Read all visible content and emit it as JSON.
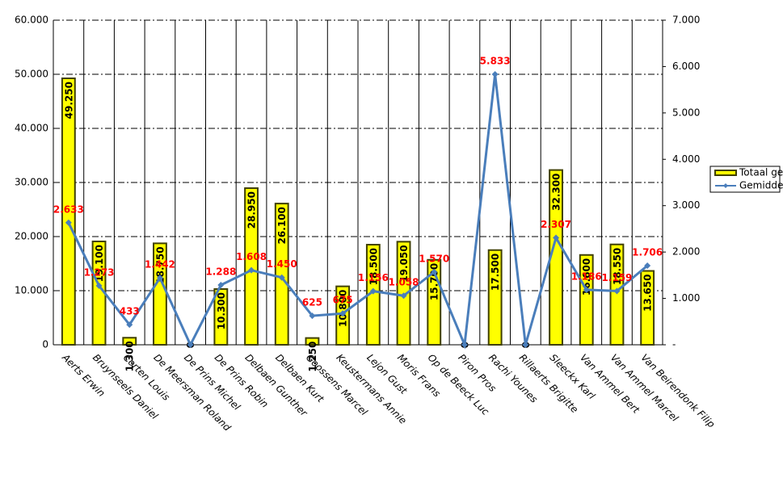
{
  "chart_data": {
    "type": "bar-line",
    "categories": [
      "Aerts Erwin",
      "Bruynseels Daniel",
      "Corten Louis",
      "De Meersman Roland",
      "De Prins Michel",
      "De Prins Robin",
      "Delbaen Gunther",
      "Delbaen Kurt",
      "Goossens Marcel",
      "Keustermans Annie",
      "Lejon Gust",
      "Moris Frans",
      "Op de Beeck Luc",
      "Piron Pros",
      "Rachi Younes",
      "Rillaerts Brigitte",
      "Sleeckx Karl",
      "Van Ammel Bert",
      "Van Ammel Marcel",
      "Van Beirendonk Filip"
    ],
    "series": [
      {
        "name": "Totaal gewicht",
        "type": "bar",
        "color": "#ffff00",
        "edge": "#404000",
        "values": [
          49250,
          19100,
          1300,
          18750,
          0,
          10300,
          28950,
          26100,
          1250,
          10800,
          18500,
          19050,
          15700,
          0,
          17500,
          0,
          32300,
          16600,
          18550,
          13650
        ],
        "value_labels": [
          "49.250",
          "19.100",
          "1.300",
          "18.750",
          "0",
          "10.300",
          "28.950",
          "26.100",
          "1.250",
          "10.800",
          "18.500",
          "19.050",
          "15.700",
          "0",
          "17.500",
          "0",
          "32.300",
          "16.600",
          "18.550",
          "13.650"
        ]
      },
      {
        "name": "Gemiddelde",
        "type": "line",
        "axis": "y2",
        "color": "#4a7ebb",
        "values": [
          2633,
          1273,
          433,
          1442,
          0,
          1288,
          1608,
          1450,
          625,
          675,
          1156,
          1058,
          1570,
          0,
          5833,
          0,
          2307,
          1186,
          1159,
          1706
        ],
        "value_labels": [
          "2.633",
          "1.273",
          "433",
          "1.442",
          null,
          "1.288",
          "1.608",
          "1.450",
          "625",
          "675",
          "1.156",
          "1.058",
          "1.570",
          null,
          "5.833",
          null,
          "2.307",
          "1.186",
          "1.159",
          "1.706"
        ]
      }
    ],
    "ylim": [
      0,
      60000
    ],
    "yticks": [
      0,
      {
        "value": 10000,
        "label": "10.000"
      },
      {
        "value": 20000,
        "label": "20.000"
      },
      {
        "value": 30000,
        "label": "30.000"
      },
      {
        "value": 40000,
        "label": "40.000"
      },
      {
        "value": 50000,
        "label": "50.000"
      },
      {
        "value": 60000,
        "label": "60.000"
      }
    ],
    "y2lim": [
      0,
      7000
    ],
    "y2ticks": [
      {
        "value": 0,
        "label": "-"
      },
      {
        "value": 1000,
        "label": "1.000"
      },
      {
        "value": 2000,
        "label": "2.000"
      },
      {
        "value": 3000,
        "label": "3.000"
      },
      {
        "value": 4000,
        "label": "4.000"
      },
      {
        "value": 5000,
        "label": "5.000"
      },
      {
        "value": 6000,
        "label": "6.000"
      },
      {
        "value": 7000,
        "label": "7.000"
      }
    ],
    "grid": true,
    "legend": "right"
  }
}
